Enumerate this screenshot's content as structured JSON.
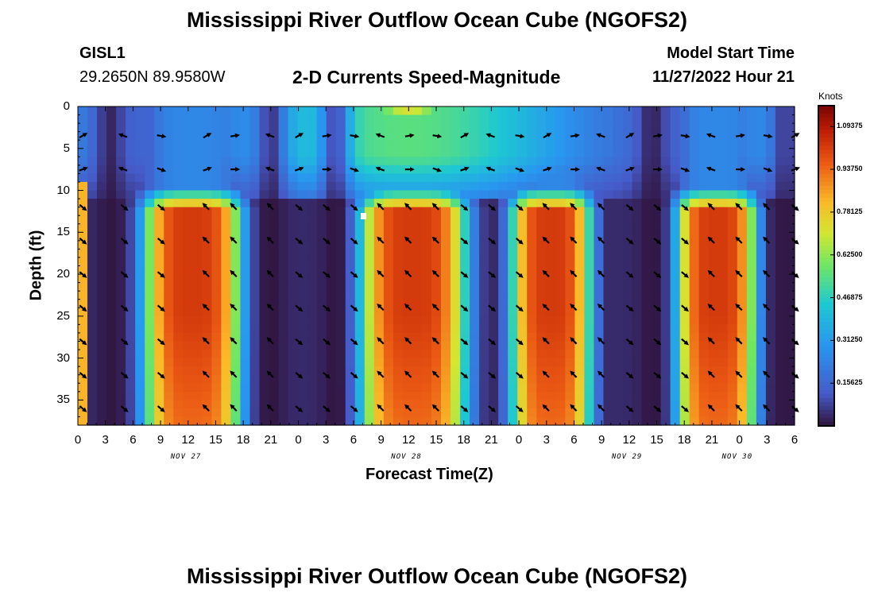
{
  "header": {
    "title": "Mississippi River Outflow Ocean Cube (NGOFS2)",
    "station_id": "GISL1",
    "station_coords": "29.2650N  89.9580W",
    "subtitle": "2-D Currents Speed-Magnitude",
    "model_start_label": "Model Start Time",
    "model_start_value": "11/27/2022 Hour 21"
  },
  "second_title": "Mississippi River Outflow Ocean Cube (NGOFS2)",
  "chart_data": {
    "type": "heatmap",
    "title": "2-D Currents Speed-Magnitude",
    "xlabel": "Forecast Time(Z)",
    "ylabel": "Depth (ft)",
    "xlim": [
      0,
      78
    ],
    "ylim": [
      38,
      0
    ],
    "x_tick_labels": [
      "0",
      "3",
      "6",
      "9",
      "12",
      "15",
      "18",
      "21",
      "0",
      "3",
      "6",
      "9",
      "12",
      "15",
      "18",
      "21",
      "0",
      "3",
      "6",
      "9",
      "12",
      "15",
      "18",
      "21",
      "0",
      "3",
      "6"
    ],
    "y_ticks": [
      0,
      5,
      10,
      15,
      20,
      25,
      30,
      35
    ],
    "date_labels": [
      {
        "label": "NOV 27",
        "hour": 12
      },
      {
        "label": "NOV 28",
        "hour": 36
      },
      {
        "label": "NOV 29",
        "hour": 60
      },
      {
        "label": "NOV 30",
        "hour": 72
      }
    ],
    "speed_peaks_hours": [
      12.5,
      36.5,
      51.5,
      69.5
    ],
    "speed_minima_hours": [
      3.5,
      21.0,
      28.0,
      62.5,
      77.0
    ],
    "max_speed_knots": 1.17,
    "colorbar": {
      "label": "Knots",
      "min": 0,
      "max": 1.17,
      "tick_labels": [
        "1.09375",
        "0.93750",
        "0.78125",
        "0.62500",
        "0.46875",
        "0.31250",
        "0.15625"
      ],
      "tick_values": [
        1.09375,
        0.9375,
        0.78125,
        0.625,
        0.46875,
        0.3125,
        0.15625
      ]
    },
    "arrow_depths_ft": [
      3.5,
      7.5,
      12,
      16,
      20,
      24,
      28,
      32,
      36
    ],
    "arrow_hours": [
      0.5,
      5,
      9,
      14,
      17,
      21,
      24,
      27,
      30,
      33,
      36,
      39,
      42,
      45,
      48,
      51,
      54,
      57,
      60,
      63,
      66,
      69,
      72,
      75,
      78
    ]
  }
}
